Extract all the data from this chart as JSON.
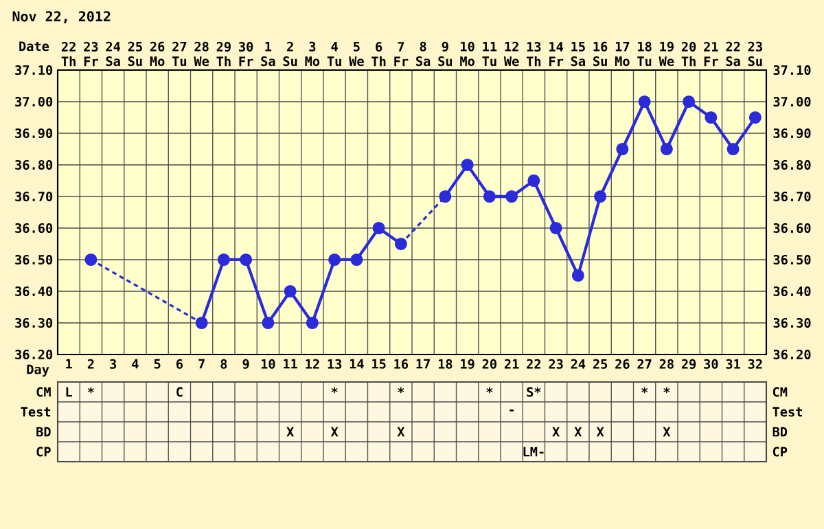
{
  "chart_data": [
    {
      "type": "line",
      "title": "Nov 22, 2012",
      "xlabel": "Day",
      "x2label": "Date",
      "categories": [
        "1",
        "2",
        "3",
        "4",
        "5",
        "6",
        "7",
        "8",
        "9",
        "10",
        "11",
        "12",
        "13",
        "14",
        "15",
        "16",
        "17",
        "18",
        "19",
        "20",
        "21",
        "22",
        "23",
        "24",
        "25",
        "26",
        "27",
        "28",
        "29",
        "30",
        "31",
        "32"
      ],
      "x2lim": [
        "2012-11-21T12:00",
        "2012-12-23T12:00"
      ],
      "x2ticks": [
        {
          "value": "2012-11-22",
          "label": "22 Th"
        },
        {
          "value": "2012-11-23",
          "label": "23 Fr"
        },
        {
          "value": "2012-11-24",
          "label": "24 Sa"
        },
        {
          "value": "2012-11-25",
          "label": "25 Su"
        },
        {
          "value": "2012-11-26",
          "label": "26 Mo"
        },
        {
          "value": "2012-11-27",
          "label": "27 Tu"
        },
        {
          "value": "2012-11-28",
          "label": "28 We"
        },
        {
          "value": "2012-11-29",
          "label": "29 Th"
        },
        {
          "value": "2012-11-30",
          "label": "30 Fr"
        },
        {
          "value": "2012-12-01",
          "label": "1 Sa"
        },
        {
          "value": "2012-12-02",
          "label": "2 Su"
        },
        {
          "value": "2012-12-03",
          "label": "3 Mo"
        },
        {
          "value": "2012-12-04",
          "label": "4 Tu"
        },
        {
          "value": "2012-12-05",
          "label": "5 We"
        },
        {
          "value": "2012-12-06",
          "label": "6 Th"
        },
        {
          "value": "2012-12-07",
          "label": "7 Fr"
        },
        {
          "value": "2012-12-08",
          "label": "8 Sa"
        },
        {
          "value": "2012-12-09",
          "label": "9 Su"
        },
        {
          "value": "2012-12-10",
          "label": "10 Mo"
        },
        {
          "value": "2012-12-11",
          "label": "11 Tu"
        },
        {
          "value": "2012-12-12",
          "label": "12 We"
        },
        {
          "value": "2012-12-13",
          "label": "13 Th"
        },
        {
          "value": "2012-12-14",
          "label": "14 Fr"
        },
        {
          "value": "2012-12-15",
          "label": "15 Sa"
        },
        {
          "value": "2012-12-16",
          "label": "16 Su"
        },
        {
          "value": "2012-12-17",
          "label": "17 Mo"
        },
        {
          "value": "2012-12-18",
          "label": "18 Tu"
        },
        {
          "value": "2012-12-19",
          "label": "19 We"
        },
        {
          "value": "2012-12-20",
          "label": "20 Th"
        },
        {
          "value": "2012-12-21",
          "label": "21 Fr"
        },
        {
          "value": "2012-12-22",
          "label": "22 Sa"
        },
        {
          "value": "2012-12-23",
          "label": "23 Su"
        }
      ],
      "ylim": [
        36.2,
        37.1
      ],
      "yticks": [
        {
          "value": 36.2,
          "label": "36.20"
        },
        {
          "value": 36.3,
          "label": "36.30"
        },
        {
          "value": 36.4,
          "label": "36.40"
        },
        {
          "value": 36.5,
          "label": "36.50"
        },
        {
          "value": 36.6,
          "label": "36.60"
        },
        {
          "value": 36.7,
          "label": "36.70"
        },
        {
          "value": 36.8,
          "label": "36.80"
        },
        {
          "value": 36.9,
          "label": "36.90"
        },
        {
          "value": 37.0,
          "label": "37.00"
        },
        {
          "value": 37.1,
          "label": "37.10"
        }
      ],
      "y2lim": [
        36.2,
        37.1
      ],
      "y2ticks": [
        {
          "value": 36.2,
          "label": "36.20"
        },
        {
          "value": 36.3,
          "label": "36.30"
        },
        {
          "value": 36.4,
          "label": "36.40"
        },
        {
          "value": 36.5,
          "label": "36.50"
        },
        {
          "value": 36.6,
          "label": "36.60"
        },
        {
          "value": 36.7,
          "label": "36.70"
        },
        {
          "value": 36.8,
          "label": "36.80"
        },
        {
          "value": 36.9,
          "label": "36.90"
        },
        {
          "value": 37.0,
          "label": "37.00"
        },
        {
          "value": 37.1,
          "label": "37.10"
        }
      ],
      "grid": true,
      "marker": "circle",
      "series": [
        {
          "color": "#2b2bd9",
          "values": [
            null,
            36.5,
            null,
            null,
            null,
            null,
            36.3,
            36.5,
            36.5,
            36.3,
            36.4,
            36.3,
            36.5,
            36.5,
            36.6,
            36.55,
            null,
            36.7,
            36.8,
            36.7,
            36.7,
            36.75,
            36.6,
            36.45,
            36.7,
            36.85,
            37.0,
            36.85,
            37.0,
            36.95,
            36.85,
            36.95
          ]
        }
      ]
    },
    {
      "type": "heatmap",
      "categories": [
        null,
        null,
        null,
        null,
        null,
        null,
        null,
        null,
        null,
        null,
        null,
        null,
        null,
        null,
        null,
        null,
        null,
        null,
        null,
        null,
        null,
        null,
        null,
        null,
        null,
        null,
        null,
        null,
        null,
        null,
        null,
        null
      ],
      "y_categories": [
        "CM",
        "Test",
        "BD",
        "CP"
      ],
      "y2_categories": [
        "CM",
        "Test",
        "BD",
        "CP"
      ],
      "cells": [
        [
          null,
          null,
          null,
          null,
          null,
          null,
          null,
          null,
          null,
          null,
          null,
          null,
          null,
          null,
          null,
          null,
          null,
          null,
          null,
          null,
          null,
          null,
          null,
          null,
          null,
          null,
          null,
          null,
          null,
          null,
          null,
          null
        ],
        [
          null,
          null,
          null,
          null,
          null,
          null,
          null,
          null,
          null,
          null,
          null,
          null,
          null,
          null,
          null,
          null,
          null,
          null,
          null,
          null,
          null,
          null,
          null,
          null,
          null,
          null,
          null,
          null,
          null,
          null,
          null,
          null
        ],
        [
          null,
          null,
          null,
          null,
          null,
          null,
          null,
          null,
          null,
          null,
          null,
          null,
          null,
          null,
          null,
          null,
          null,
          null,
          null,
          null,
          null,
          null,
          null,
          null,
          null,
          null,
          null,
          null,
          null,
          null,
          null,
          null
        ],
        [
          null,
          null,
          null,
          null,
          null,
          null,
          null,
          null,
          null,
          null,
          null,
          null,
          null,
          null,
          null,
          null,
          null,
          null,
          null,
          null,
          null,
          null,
          null,
          null,
          null,
          null,
          null,
          null,
          null,
          null,
          null,
          null
        ]
      ],
      "cell_labels": [
        [
          "L",
          "*",
          null,
          null,
          null,
          "C",
          null,
          null,
          null,
          null,
          null,
          null,
          "*",
          null,
          null,
          "*",
          null,
          null,
          null,
          "*",
          null,
          "S*",
          null,
          null,
          null,
          null,
          "*",
          "*",
          null,
          null,
          null,
          null
        ],
        [
          null,
          null,
          null,
          null,
          null,
          null,
          null,
          null,
          null,
          null,
          null,
          null,
          null,
          null,
          null,
          null,
          null,
          null,
          null,
          null,
          "-",
          null,
          null,
          null,
          null,
          null,
          null,
          null,
          null,
          null,
          null,
          null
        ],
        [
          null,
          null,
          null,
          null,
          null,
          null,
          null,
          null,
          null,
          null,
          "X",
          null,
          "X",
          null,
          null,
          "X",
          null,
          null,
          null,
          null,
          null,
          null,
          "X",
          "X",
          "X",
          null,
          null,
          "X",
          null,
          null,
          null,
          null
        ],
        [
          null,
          null,
          null,
          null,
          null,
          null,
          null,
          null,
          null,
          null,
          null,
          null,
          null,
          null,
          null,
          null,
          null,
          null,
          null,
          null,
          null,
          "LM-",
          null,
          null,
          null,
          null,
          null,
          null,
          null,
          null,
          null,
          null
        ]
      ]
    }
  ]
}
